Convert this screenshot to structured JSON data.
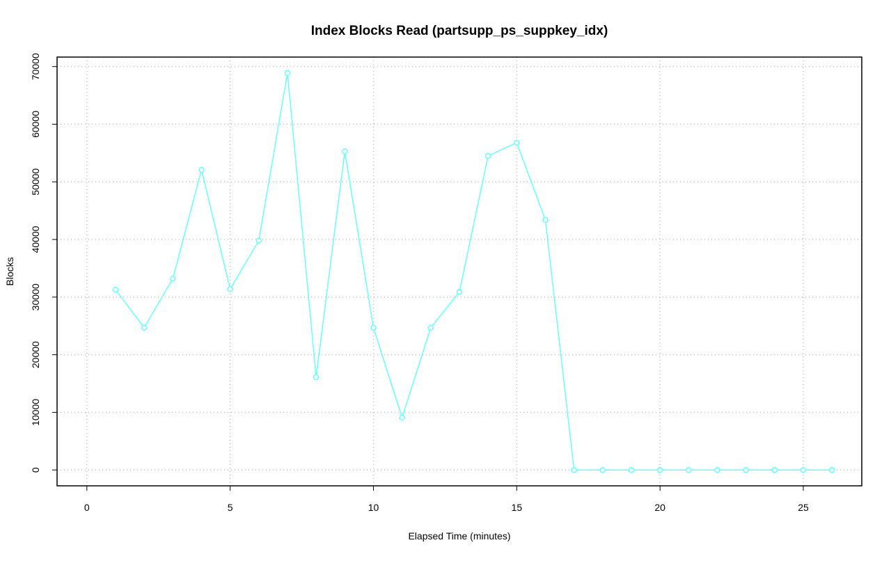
{
  "chart_data": {
    "type": "line",
    "title": "Index Blocks Read (partsupp_ps_suppkey_idx)",
    "x_label": "Elapsed Time (minutes)",
    "y_label": "Blocks",
    "x": [
      1,
      2,
      3,
      4,
      5,
      6,
      7,
      8,
      9,
      10,
      11,
      12,
      13,
      14,
      15,
      16,
      17,
      18,
      19,
      20,
      21,
      22,
      23,
      24,
      25,
      26
    ],
    "series": [
      {
        "color": "#66ffff",
        "values": [
          31300,
          24700,
          33200,
          52100,
          31400,
          39800,
          68900,
          16100,
          55300,
          24700,
          9100,
          24700,
          30900,
          54500,
          56800,
          43400,
          0,
          0,
          0,
          0,
          0,
          0,
          0,
          0,
          0,
          0
        ]
      }
    ],
    "xlim": [
      -1.04,
      27.04
    ],
    "ylim": [
      -2750,
      71650
    ],
    "xticks": [
      0,
      5,
      10,
      15,
      20,
      25
    ],
    "yticks": [
      0,
      10000,
      20000,
      30000,
      40000,
      50000,
      60000,
      70000
    ],
    "grid": true
  }
}
